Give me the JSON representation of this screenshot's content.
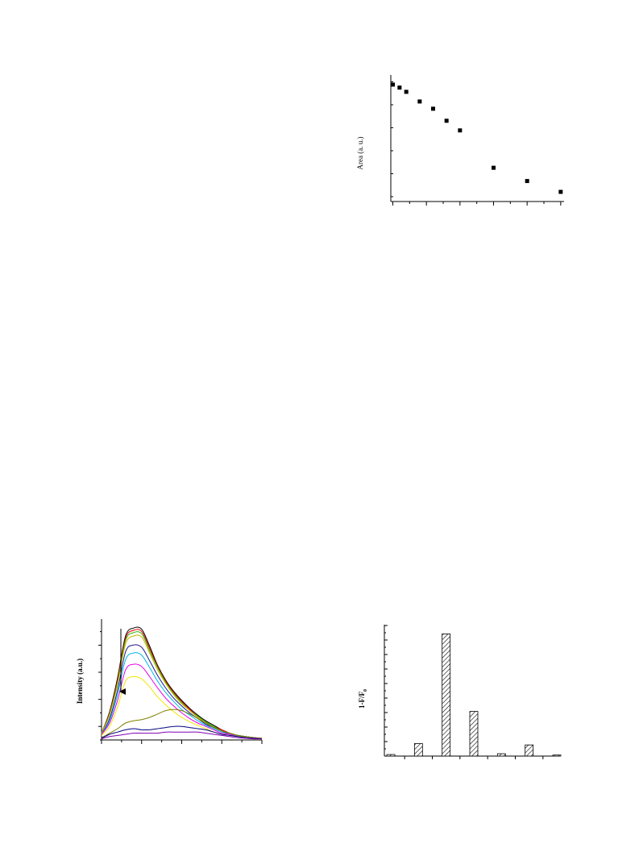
{
  "chart_data": [
    {
      "type": "scatter",
      "title": "",
      "xlabel": "",
      "ylabel": "Area (a. u.)",
      "x": [
        0,
        1,
        2,
        4,
        6,
        8,
        10,
        15,
        20,
        25
      ],
      "y": [
        0.92,
        0.895,
        0.86,
        0.78,
        0.72,
        0.62,
        0.54,
        0.23,
        0.12,
        0.03
      ],
      "xlim": [
        -0.3,
        25.5
      ],
      "ylim": [
        -0.05,
        1.0
      ],
      "marker": "square",
      "grid": false,
      "colors": {
        "marker": "#000000"
      }
    },
    {
      "type": "line",
      "title": "",
      "xlabel": "",
      "ylabel": "Intensity (a.u.)",
      "annotation": "downward-arrow",
      "x": [
        0,
        5,
        10,
        15,
        20,
        25,
        30,
        35,
        40,
        45,
        50,
        55,
        60,
        65,
        70,
        75,
        80,
        85,
        90,
        95,
        100
      ],
      "xlim": [
        0,
        100
      ],
      "ylim": [
        0,
        1.07
      ],
      "grid": false,
      "series": [
        {
          "color": "#000000",
          "values": [
            0.06,
            0.25,
            0.55,
            0.92,
            0.99,
            0.98,
            0.83,
            0.66,
            0.53,
            0.43,
            0.35,
            0.28,
            0.22,
            0.17,
            0.13,
            0.09,
            0.06,
            0.04,
            0.03,
            0.02,
            0.015
          ]
        },
        {
          "color": "#e60000",
          "values": [
            0.06,
            0.24,
            0.53,
            0.9,
            0.97,
            0.96,
            0.81,
            0.65,
            0.52,
            0.42,
            0.34,
            0.27,
            0.21,
            0.16,
            0.12,
            0.09,
            0.06,
            0.04,
            0.03,
            0.02,
            0.015
          ]
        },
        {
          "color": "#2db400",
          "values": [
            0.06,
            0.23,
            0.51,
            0.88,
            0.95,
            0.94,
            0.79,
            0.64,
            0.51,
            0.41,
            0.33,
            0.26,
            0.21,
            0.16,
            0.12,
            0.08,
            0.06,
            0.04,
            0.03,
            0.02,
            0.015
          ]
        },
        {
          "color": "#c8b400",
          "values": [
            0.06,
            0.22,
            0.49,
            0.85,
            0.92,
            0.91,
            0.77,
            0.62,
            0.5,
            0.4,
            0.32,
            0.26,
            0.2,
            0.15,
            0.11,
            0.08,
            0.06,
            0.04,
            0.03,
            0.02,
            0.015
          ]
        },
        {
          "color": "#1a1a96",
          "values": [
            0.05,
            0.19,
            0.44,
            0.78,
            0.84,
            0.82,
            0.7,
            0.57,
            0.46,
            0.37,
            0.3,
            0.24,
            0.19,
            0.14,
            0.11,
            0.08,
            0.05,
            0.04,
            0.03,
            0.02,
            0.015
          ]
        },
        {
          "color": "#00b4e6",
          "values": [
            0.05,
            0.17,
            0.4,
            0.71,
            0.77,
            0.75,
            0.64,
            0.52,
            0.42,
            0.34,
            0.27,
            0.22,
            0.17,
            0.13,
            0.1,
            0.07,
            0.05,
            0.04,
            0.03,
            0.02,
            0.015
          ]
        },
        {
          "color": "#e600e6",
          "values": [
            0.05,
            0.15,
            0.35,
            0.62,
            0.67,
            0.65,
            0.56,
            0.46,
            0.37,
            0.3,
            0.24,
            0.19,
            0.15,
            0.12,
            0.09,
            0.06,
            0.05,
            0.03,
            0.02,
            0.02,
            0.015
          ]
        },
        {
          "color": "#f0e600",
          "values": [
            0.04,
            0.12,
            0.29,
            0.52,
            0.56,
            0.54,
            0.47,
            0.38,
            0.31,
            0.25,
            0.2,
            0.16,
            0.13,
            0.1,
            0.07,
            0.05,
            0.04,
            0.03,
            0.02,
            0.015,
            0.01
          ]
        },
        {
          "color": "#808000",
          "values": [
            0.02,
            0.06,
            0.1,
            0.15,
            0.17,
            0.18,
            0.2,
            0.23,
            0.26,
            0.27,
            0.26,
            0.23,
            0.19,
            0.15,
            0.11,
            0.08,
            0.06,
            0.04,
            0.03,
            0.02,
            0.015
          ]
        },
        {
          "color": "#000080",
          "values": [
            0.015,
            0.05,
            0.07,
            0.09,
            0.1,
            0.09,
            0.09,
            0.1,
            0.11,
            0.12,
            0.12,
            0.11,
            0.1,
            0.09,
            0.07,
            0.05,
            0.04,
            0.03,
            0.02,
            0.015,
            0.01
          ]
        },
        {
          "color": "#8000b4",
          "values": [
            0.01,
            0.03,
            0.04,
            0.05,
            0.06,
            0.06,
            0.06,
            0.06,
            0.07,
            0.07,
            0.07,
            0.07,
            0.07,
            0.06,
            0.05,
            0.04,
            0.03,
            0.02,
            0.015,
            0.01,
            0.01
          ]
        }
      ]
    },
    {
      "type": "bar",
      "title": "",
      "xlabel": "",
      "ylabel_main": "1-F/F",
      "ylabel_sub": "0",
      "categories": [
        "",
        "",
        "",
        "",
        "",
        "",
        ""
      ],
      "values": [
        0.012,
        0.095,
        0.93,
        0.34,
        0.018,
        0.085,
        0.008
      ],
      "ylim": [
        0,
        1.0
      ],
      "pattern": "diagonal-hatch",
      "grid": false
    }
  ]
}
